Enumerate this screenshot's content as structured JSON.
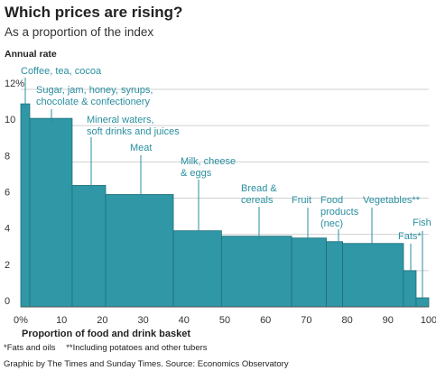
{
  "title": "Which prices are rising?",
  "subtitle": "As a proportion of the index",
  "chart_data": {
    "type": "bar",
    "variant": "variable-width",
    "title": "Which prices are rising?",
    "subtitle": "As a proportion of the index",
    "ylabel": "Annual rate",
    "xlabel": "Proportion of food and drink basket",
    "ylim": [
      0,
      12
    ],
    "xlim": [
      0,
      100
    ],
    "yticks": [
      "0",
      "2",
      "4",
      "6",
      "8",
      "10",
      "12%"
    ],
    "xticks": [
      "0%",
      "10",
      "20",
      "30",
      "40",
      "50",
      "60",
      "70",
      "80",
      "90",
      "100"
    ],
    "grid": true,
    "bar_color": "#2f97a6",
    "label_color": "#2a8fa0",
    "categories": [
      {
        "label": [
          "Coffee, tea, cocoa"
        ],
        "x_start": 0,
        "x_end": 2.2,
        "value": 11.2
      },
      {
        "label": [
          "Sugar, jam, honey, syrups,",
          "chocolate & confectionery"
        ],
        "x_start": 2.2,
        "x_end": 12.6,
        "value": 10.4
      },
      {
        "label": [
          "Mineral waters,",
          "soft drinks and juices"
        ],
        "x_start": 12.6,
        "x_end": 20.8,
        "value": 6.7
      },
      {
        "label": [
          "Meat"
        ],
        "x_start": 20.8,
        "x_end": 37.4,
        "value": 6.2
      },
      {
        "label": [
          "Milk, cheese",
          "& eggs"
        ],
        "x_start": 37.4,
        "x_end": 49.2,
        "value": 4.2
      },
      {
        "label": [
          "Bread &",
          "cereals"
        ],
        "x_start": 49.2,
        "x_end": 66.4,
        "value": 3.9
      },
      {
        "label": [
          "Fruit"
        ],
        "x_start": 66.4,
        "x_end": 74.9,
        "value": 3.8
      },
      {
        "label": [
          "Food",
          "products",
          "(nec)"
        ],
        "x_start": 74.9,
        "x_end": 78.9,
        "value": 3.6
      },
      {
        "label": [
          "Vegetables**"
        ],
        "x_start": 78.9,
        "x_end": 93.8,
        "value": 3.5
      },
      {
        "label": [
          "Fats*"
        ],
        "x_start": 93.8,
        "x_end": 96.9,
        "value": 2.0
      },
      {
        "label": [
          "Fish"
        ],
        "x_start": 96.9,
        "x_end": 100,
        "value": 0.5
      }
    ]
  },
  "footnotes": [
    "*Fats and oils",
    "**Including potatoes and other tubers"
  ],
  "source": "Graphic by The Times and Sunday Times. Source: Economics Observatory"
}
